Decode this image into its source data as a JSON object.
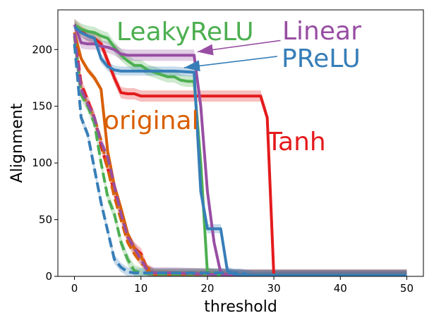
{
  "chart_data": {
    "type": "line",
    "xlabel": "threshold",
    "ylabel": "Alignment",
    "xlim": [
      -2.5,
      52.5
    ],
    "ylim": [
      0,
      235
    ],
    "xticks": [
      0,
      10,
      20,
      30,
      40,
      50
    ],
    "yticks": [
      0,
      50,
      100,
      150,
      200
    ],
    "grid": false,
    "legend": "none",
    "annotations": [
      {
        "text": "LeakyReLU",
        "color": "#4caf50"
      },
      {
        "text": "Linear",
        "color": "#984ea3"
      },
      {
        "text": "PReLU",
        "color": "#377eb8"
      },
      {
        "text": "original",
        "color": "#d95f02"
      },
      {
        "text": "Tanh",
        "color": "#e41a1c"
      }
    ],
    "arrows": [
      {
        "color": "#984ea3",
        "from": [
          31,
          208
        ],
        "to": [
          18.5,
          198
        ]
      },
      {
        "color": "#377eb8",
        "from": [
          30.5,
          194
        ],
        "to": [
          16.5,
          184
        ]
      }
    ],
    "series": [
      {
        "color": "#e41a1c",
        "dashed": false,
        "band": 5,
        "x": [
          0,
          1,
          2,
          3,
          4,
          5,
          6,
          7,
          8,
          9,
          10,
          11,
          12,
          15,
          20,
          25,
          28,
          29,
          30,
          35,
          40,
          45,
          50
        ],
        "y": [
          222,
          216,
          212,
          210,
          205,
          190,
          175,
          162,
          161,
          161,
          159,
          159,
          159,
          159,
          159,
          159,
          159,
          140,
          0,
          0,
          0,
          0,
          0
        ]
      },
      {
        "color": "#e41a1c",
        "dashed": true,
        "band": 5,
        "x": [
          0,
          1,
          2,
          3,
          4,
          5,
          6,
          7,
          8,
          9,
          10,
          11,
          12,
          15,
          20,
          25,
          30,
          40,
          50
        ],
        "y": [
          215,
          170,
          155,
          140,
          115,
          95,
          75,
          55,
          35,
          25,
          20,
          5,
          2,
          2,
          2,
          1,
          1,
          1,
          1
        ]
      },
      {
        "color": "#d95f02",
        "dashed": false,
        "band": 3,
        "x": [
          0,
          1,
          2,
          3,
          4,
          5,
          6,
          7,
          8,
          9,
          10,
          11,
          12,
          15,
          20,
          25,
          30,
          40,
          50
        ],
        "y": [
          215,
          192,
          182,
          175,
          165,
          110,
          80,
          60,
          38,
          25,
          18,
          5,
          2,
          2,
          2,
          1,
          1,
          1,
          1
        ]
      },
      {
        "color": "#d95f02",
        "dashed": true,
        "band": 3,
        "x": [
          0,
          1,
          2,
          3,
          4,
          5,
          6,
          7,
          8,
          9,
          10,
          12,
          15,
          20,
          25,
          30,
          40,
          50
        ],
        "y": [
          212,
          165,
          150,
          140,
          120,
          95,
          70,
          50,
          30,
          20,
          12,
          3,
          2,
          2,
          1,
          1,
          1,
          1
        ]
      },
      {
        "color": "#4caf50",
        "dashed": false,
        "band": 5,
        "x": [
          0,
          1,
          2,
          3,
          4,
          5,
          6,
          7,
          8,
          9,
          10,
          11,
          12,
          13,
          14,
          15,
          16,
          17,
          18,
          19,
          20,
          21,
          22,
          25,
          30,
          40,
          50
        ],
        "y": [
          222,
          218,
          216,
          215,
          212,
          210,
          202,
          195,
          190,
          186,
          186,
          182,
          180,
          178,
          176,
          176,
          173,
          172,
          172,
          100,
          3,
          2,
          1,
          1,
          1,
          1,
          1
        ]
      },
      {
        "color": "#4caf50",
        "dashed": true,
        "band": 5,
        "x": [
          0,
          1,
          2,
          3,
          4,
          5,
          6,
          7,
          8,
          9,
          10,
          12,
          15,
          20,
          25,
          30,
          40,
          50
        ],
        "y": [
          212,
          160,
          150,
          135,
          100,
          70,
          55,
          30,
          15,
          5,
          3,
          2,
          2,
          2,
          1,
          1,
          1,
          1
        ]
      },
      {
        "color": "#984ea3",
        "dashed": false,
        "band": 5,
        "x": [
          0,
          1,
          2,
          3,
          4,
          5,
          6,
          7,
          8,
          10,
          15,
          18,
          19,
          20,
          21,
          22,
          23,
          25,
          30,
          40,
          50
        ],
        "y": [
          222,
          206,
          205,
          205,
          203,
          202,
          200,
          196,
          195,
          195,
          195,
          195,
          150,
          75,
          30,
          3,
          1,
          1,
          1,
          1,
          1
        ]
      },
      {
        "color": "#984ea3",
        "dashed": true,
        "band": 5,
        "x": [
          0,
          1,
          2,
          3,
          4,
          5,
          6,
          7,
          8,
          9,
          10,
          11,
          12,
          15,
          20,
          25,
          30,
          40,
          50
        ],
        "y": [
          214,
          165,
          152,
          140,
          118,
          105,
          80,
          55,
          35,
          25,
          15,
          5,
          3,
          3,
          2,
          1,
          1,
          1,
          1
        ]
      },
      {
        "color": "#377eb8",
        "dashed": false,
        "band": 4,
        "x": [
          0,
          1,
          2,
          3,
          4,
          5,
          6,
          7,
          8,
          10,
          15,
          18,
          19,
          20,
          21,
          22,
          23,
          24,
          25,
          30,
          40,
          50
        ],
        "y": [
          220,
          215,
          212,
          210,
          192,
          185,
          182,
          181,
          181,
          181,
          181,
          180,
          75,
          42,
          42,
          42,
          5,
          2,
          1,
          1,
          1,
          1
        ]
      },
      {
        "color": "#377eb8",
        "dashed": true,
        "band": 4,
        "x": [
          0,
          1,
          2,
          3,
          4,
          5,
          6,
          7,
          8,
          9,
          10,
          12,
          15,
          20,
          25,
          27,
          30,
          40,
          50
        ],
        "y": [
          205,
          140,
          125,
          95,
          65,
          40,
          15,
          8,
          4,
          3,
          3,
          3,
          3,
          3,
          3,
          0,
          0,
          0,
          0
        ]
      }
    ]
  }
}
